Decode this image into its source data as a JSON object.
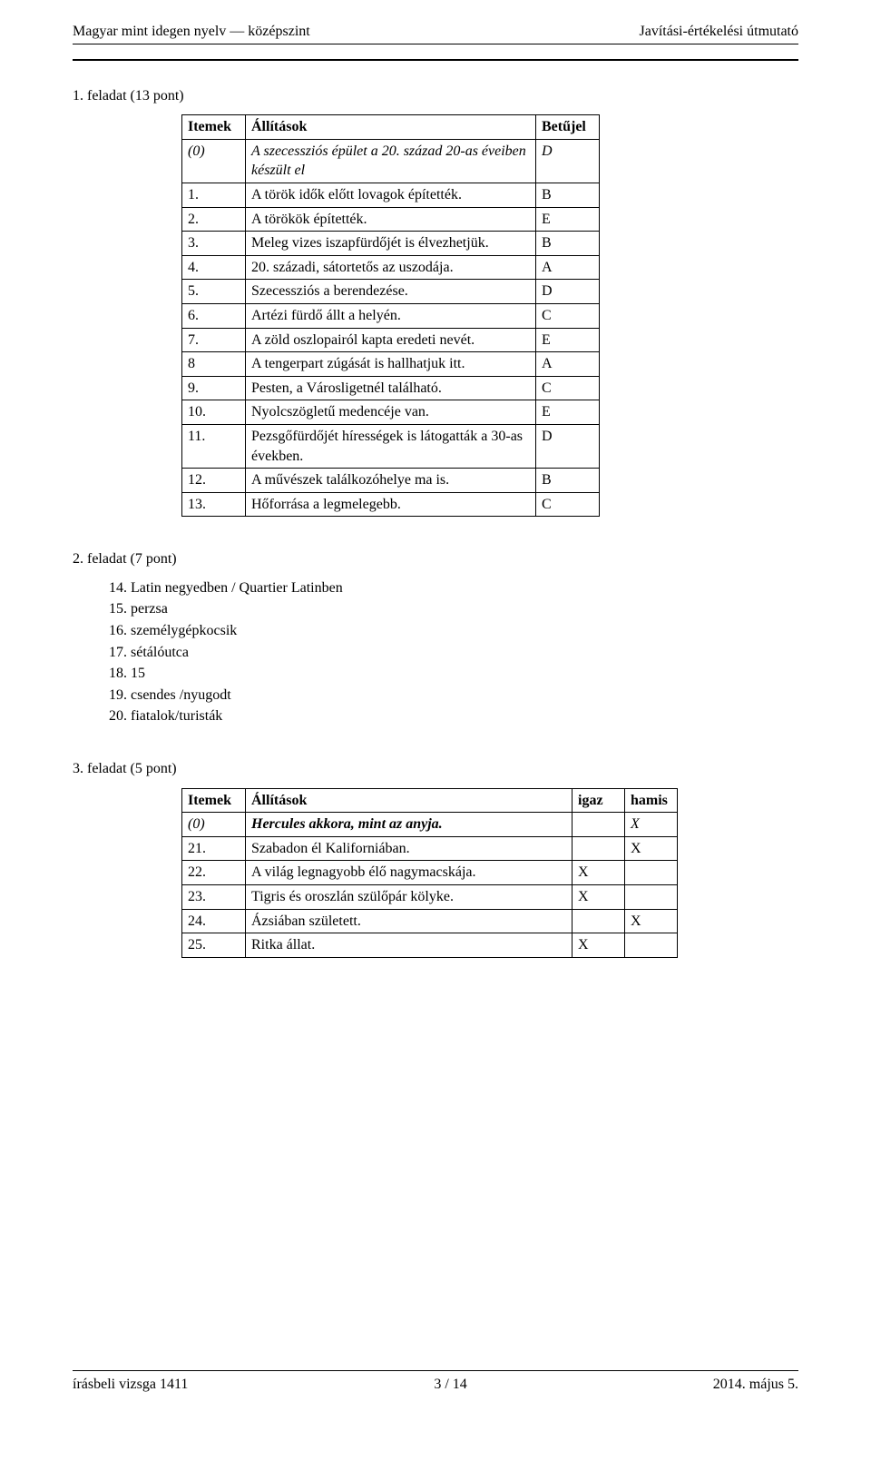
{
  "header": {
    "left": "Magyar mint idegen nyelv — középszint",
    "right": "Javítási-értékelési útmutató"
  },
  "task1": {
    "title": "1.  feladat (13 pont)",
    "columns": {
      "item": "Itemek",
      "stmt": "Állítások",
      "letter": "Betűjel"
    },
    "rows": [
      {
        "item": "(0)",
        "stmt": "A szecessziós épület a 20. század 20-as éveiben készült el",
        "letter": "D",
        "italicItem": true,
        "italicStmt": true,
        "italicLetter": true
      },
      {
        "item": "1.",
        "stmt": "A török idők előtt lovagok építették.",
        "letter": "B"
      },
      {
        "item": "2.",
        "stmt": "A törökök építették.",
        "letter": "E"
      },
      {
        "item": "3.",
        "stmt": "Meleg vizes iszapfürdőjét is élvezhetjük.",
        "letter": "B"
      },
      {
        "item": "4.",
        "stmt": "20. századi, sátortetős az uszodája.",
        "letter": "A"
      },
      {
        "item": "5.",
        "stmt": "Szecessziós a berendezése.",
        "letter": "D"
      },
      {
        "item": "6.",
        "stmt": "Artézi fürdő állt a helyén.",
        "letter": "C"
      },
      {
        "item": "7.",
        "stmt": "A zöld oszlopairól kapta eredeti nevét.",
        "letter": "E"
      },
      {
        "item": "8",
        "stmt": "A tengerpart zúgását is hallhatjuk itt.",
        "letter": "A"
      },
      {
        "item": "9.",
        "stmt": "Pesten, a Városligetnél található.",
        "letter": "C"
      },
      {
        "item": "10.",
        "stmt": "Nyolcszögletű medencéje van.",
        "letter": "E"
      },
      {
        "item": "11.",
        "stmt": "Pezsgőfürdőjét hírességek is látogatták a 30-as években.",
        "letter": "D"
      },
      {
        "item": "12.",
        "stmt": "A művészek találkozóhelye ma is.",
        "letter": "B"
      },
      {
        "item": "13.",
        "stmt": "Hőforrása a legmelegebb.",
        "letter": "C"
      }
    ]
  },
  "task2": {
    "title": "2.  feladat (7 pont)",
    "items": [
      "14. Latin negyedben / Quartier Latinben",
      "15. perzsa",
      "16. személygépkocsik",
      "17. sétálóutca",
      "18. 15",
      "19. csendes /nyugodt",
      "20. fiatalok/turisták"
    ]
  },
  "task3": {
    "title": "3.  feladat (5 pont)",
    "columns": {
      "item": "Itemek",
      "stmt": "Állítások",
      "true": "igaz",
      "false": "hamis"
    },
    "mark": "X",
    "rows": [
      {
        "item": "(0)",
        "stmt": "Hercules akkora, mint az anyja.",
        "true": "",
        "false": "X",
        "italicItem": true,
        "boldItalicStmt": true,
        "italicMark": true
      },
      {
        "item": "21.",
        "stmt": "Szabadon él Kaliforniában.",
        "true": "",
        "false": "X"
      },
      {
        "item": "22.",
        "stmt": "A világ legnagyobb élő nagymacskája.",
        "true": "X",
        "false": ""
      },
      {
        "item": "23.",
        "stmt": "Tigris és oroszlán szülőpár kölyke.",
        "true": "X",
        "false": ""
      },
      {
        "item": "24.",
        "stmt": "Ázsiában született.",
        "true": "",
        "false": "X"
      },
      {
        "item": "25.",
        "stmt": "Ritka állat.",
        "true": "X",
        "false": ""
      }
    ]
  },
  "footer": {
    "left": "írásbeli vizsga 1411",
    "center": "3 / 14",
    "right": "2014. május 5."
  }
}
